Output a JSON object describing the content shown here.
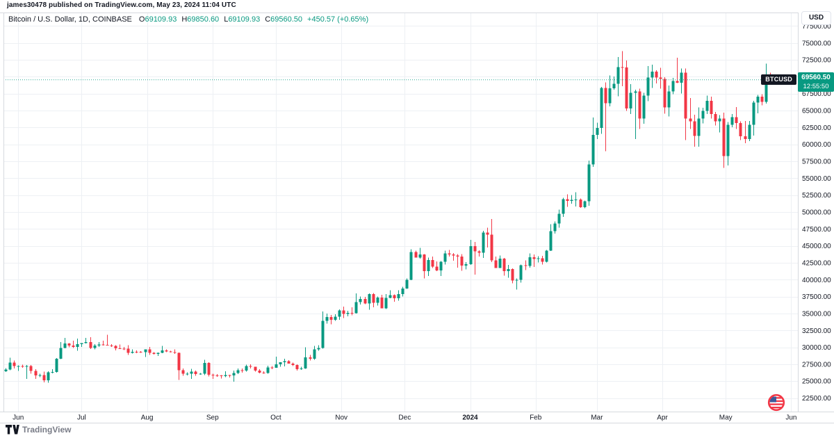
{
  "attribution": "james30478 published on TradingView.com, May 23, 2024 11:04 UTC",
  "legend": {
    "symbol_title": "Bitcoin / U.S. Dollar, 1D, COINBASE",
    "ohlc": [
      {
        "label": "O",
        "value": "69109.93"
      },
      {
        "label": "H",
        "value": "69850.60"
      },
      {
        "label": "L",
        "value": "69109.93"
      },
      {
        "label": "C",
        "value": "69560.50"
      }
    ],
    "change": "+450.57 (+0.65%)"
  },
  "price_scale": {
    "currency_button": "USD",
    "symbol_tag": "BTCUSD",
    "price_label": {
      "price": "69560.50",
      "countdown": "12:55:50"
    },
    "ticks": [
      "77500.00",
      "75000.00",
      "72500.00",
      "70000.00",
      "67500.00",
      "65000.00",
      "62500.00",
      "60000.00",
      "57500.00",
      "55000.00",
      "52500.00",
      "50000.00",
      "47500.00",
      "45000.00",
      "42500.00",
      "40000.00",
      "37500.00",
      "35000.00",
      "32500.00",
      "30000.00",
      "27500.00",
      "25000.00",
      "22500.00"
    ]
  },
  "time_scale": {
    "months": [
      {
        "label": "Jun",
        "index": 3
      },
      {
        "label": "Jul",
        "index": 18
      },
      {
        "label": "Aug",
        "index": 33.5
      },
      {
        "label": "Sep",
        "index": 49
      },
      {
        "label": "Oct",
        "index": 64
      },
      {
        "label": "Nov",
        "index": 79.5
      },
      {
        "label": "Dec",
        "index": 94.5
      },
      {
        "label": "2024",
        "index": 110,
        "year": true
      },
      {
        "label": "Feb",
        "index": 125.5
      },
      {
        "label": "Mar",
        "index": 140
      },
      {
        "label": "Apr",
        "index": 155.5
      },
      {
        "label": "May",
        "index": 170.5
      },
      {
        "label": "Jun",
        "index": 186
      }
    ]
  },
  "footer": {
    "brand": "TradingView"
  },
  "colors": {
    "up": "#089981",
    "down": "#F23645",
    "grid": "#EDF0F4",
    "border": "#D6D9DE",
    "text": "#131722",
    "muted": "#787B86",
    "price_line": "#089981",
    "tag_bg": "#089981",
    "symbol_tag_bg": "#131722"
  },
  "chart_data": {
    "type": "candlestick",
    "symbol": "BTCUSD",
    "exchange": "COINBASE",
    "interval": "1D",
    "x_start_date": "2023-05-26",
    "days_per_candle": 2,
    "ylim": [
      20500,
      79500
    ],
    "y_tick_step": 2500,
    "grid": true,
    "last_price": 69560.5,
    "candles_format": [
      "open",
      "high",
      "low",
      "close"
    ],
    "candles": [
      [
        26450,
        26900,
        26350,
        26720
      ],
      [
        26720,
        28450,
        26620,
        27740
      ],
      [
        27740,
        28050,
        26850,
        27220
      ],
      [
        27220,
        27320,
        26500,
        27250
      ],
      [
        27250,
        27450,
        26950,
        27120
      ],
      [
        27120,
        27400,
        25350,
        27240
      ],
      [
        27240,
        27400,
        26100,
        26500
      ],
      [
        26500,
        26780,
        25350,
        25850
      ],
      [
        25850,
        26100,
        25600,
        25900
      ],
      [
        25900,
        26430,
        24800,
        25130
      ],
      [
        25130,
        26480,
        24750,
        26330
      ],
      [
        26330,
        26770,
        26170,
        26340
      ],
      [
        26340,
        28400,
        26270,
        28320
      ],
      [
        28320,
        30800,
        28280,
        29890
      ],
      [
        29890,
        31390,
        29840,
        30550
      ],
      [
        30550,
        30650,
        29990,
        30270
      ],
      [
        30270,
        31000,
        29880,
        30080
      ],
      [
        30080,
        31280,
        29500,
        30470
      ],
      [
        30470,
        30640,
        30050,
        30620
      ],
      [
        30620,
        31380,
        30570,
        30780
      ],
      [
        30780,
        31500,
        29750,
        29900
      ],
      [
        29900,
        30450,
        29680,
        30290
      ],
      [
        30290,
        30800,
        30050,
        30400
      ],
      [
        30400,
        31000,
        30250,
        30380
      ],
      [
        30380,
        31850,
        30270,
        30290
      ],
      [
        30290,
        30450,
        30050,
        30230
      ],
      [
        30230,
        30340,
        29560,
        29860
      ],
      [
        29860,
        30420,
        29750,
        29800
      ],
      [
        29800,
        30050,
        29600,
        29790
      ],
      [
        29790,
        30340,
        28860,
        29180
      ],
      [
        29180,
        29680,
        29070,
        29350
      ],
      [
        29350,
        29550,
        29110,
        29320
      ],
      [
        29320,
        29450,
        29200,
        29280
      ],
      [
        29280,
        29720,
        28550,
        29700
      ],
      [
        29700,
        30050,
        28900,
        29170
      ],
      [
        29170,
        29300,
        28950,
        29050
      ],
      [
        29050,
        29250,
        28700,
        29200
      ],
      [
        29200,
        30220,
        29120,
        29560
      ],
      [
        29560,
        29700,
        29300,
        29400
      ],
      [
        29400,
        29470,
        29260,
        29280
      ],
      [
        29280,
        29680,
        29050,
        29170
      ],
      [
        29170,
        29250,
        25200,
        26600
      ],
      [
        26600,
        26850,
        25800,
        26100
      ],
      [
        26100,
        26300,
        25850,
        26120
      ],
      [
        26120,
        26800,
        25350,
        26430
      ],
      [
        26430,
        26550,
        25800,
        26050
      ],
      [
        26050,
        26200,
        25960,
        26100
      ],
      [
        26100,
        28140,
        25880,
        27720
      ],
      [
        27720,
        27800,
        25700,
        25940
      ],
      [
        25940,
        26120,
        25350,
        25870
      ],
      [
        25870,
        26030,
        25650,
        25820
      ],
      [
        25820,
        25900,
        25400,
        25750
      ],
      [
        25750,
        26450,
        25600,
        25900
      ],
      [
        25900,
        25960,
        25550,
        25830
      ],
      [
        25830,
        26550,
        24930,
        26200
      ],
      [
        26200,
        26850,
        26050,
        26600
      ],
      [
        26600,
        26850,
        26250,
        26570
      ],
      [
        26570,
        27430,
        26400,
        27210
      ],
      [
        27210,
        27490,
        26850,
        27130
      ],
      [
        27130,
        27150,
        26400,
        26580
      ],
      [
        26580,
        26750,
        26170,
        26250
      ],
      [
        26250,
        26450,
        26100,
        26220
      ],
      [
        26220,
        27300,
        26100,
        27020
      ],
      [
        27020,
        27230,
        26750,
        26960
      ],
      [
        26960,
        28600,
        26950,
        27500
      ],
      [
        27500,
        27800,
        27150,
        27790
      ],
      [
        27790,
        28300,
        27200,
        27960
      ],
      [
        27960,
        28100,
        27700,
        27590
      ],
      [
        27590,
        27730,
        27250,
        27390
      ],
      [
        27390,
        27480,
        26550,
        26750
      ],
      [
        26750,
        27120,
        26650,
        26860
      ],
      [
        26860,
        30000,
        26800,
        28520
      ],
      [
        28520,
        28900,
        28050,
        28330
      ],
      [
        28330,
        30200,
        28150,
        29680
      ],
      [
        29680,
        30300,
        29500,
        29910
      ],
      [
        29910,
        35280,
        29800,
        33900
      ],
      [
        33900,
        35000,
        33500,
        34500
      ],
      [
        34500,
        34800,
        33400,
        34090
      ],
      [
        34090,
        34900,
        33900,
        34530
      ],
      [
        34530,
        35600,
        34050,
        35430
      ],
      [
        35430,
        36000,
        34350,
        34940
      ],
      [
        34940,
        35380,
        34600,
        35080
      ],
      [
        35080,
        35900,
        34750,
        35050
      ],
      [
        35050,
        37980,
        35000,
        36700
      ],
      [
        36700,
        37500,
        36350,
        37130
      ],
      [
        37130,
        37450,
        36400,
        36460
      ],
      [
        36460,
        37980,
        35550,
        37880
      ],
      [
        37880,
        38000,
        35900,
        36590
      ],
      [
        36590,
        37500,
        36200,
        37360
      ],
      [
        37360,
        37750,
        35750,
        35750
      ],
      [
        35750,
        37850,
        35650,
        37290
      ],
      [
        37290,
        38450,
        37250,
        37710
      ],
      [
        37710,
        37820,
        36750,
        37240
      ],
      [
        37240,
        38420,
        36900,
        37860
      ],
      [
        37860,
        38950,
        37500,
        38680
      ],
      [
        38680,
        40200,
        38650,
        39970
      ],
      [
        39970,
        44480,
        39950,
        44080
      ],
      [
        44080,
        44300,
        43400,
        43290
      ],
      [
        43290,
        44700,
        43100,
        43720
      ],
      [
        43720,
        43800,
        40200,
        41240
      ],
      [
        41240,
        43280,
        40550,
        42900
      ],
      [
        42900,
        43420,
        41700,
        41940
      ],
      [
        41940,
        42700,
        41250,
        41370
      ],
      [
        41370,
        42730,
        40530,
        42660
      ],
      [
        42660,
        44280,
        42250,
        43870
      ],
      [
        43870,
        44400,
        43440,
        43720
      ],
      [
        43720,
        43950,
        42800,
        43580
      ],
      [
        43580,
        43800,
        41800,
        43440
      ],
      [
        43440,
        43800,
        41300,
        42070
      ],
      [
        42070,
        42600,
        41520,
        42280
      ],
      [
        42280,
        45900,
        42200,
        44950
      ],
      [
        44950,
        45600,
        40750,
        44170
      ],
      [
        44170,
        44350,
        43400,
        43970
      ],
      [
        43970,
        47250,
        43200,
        46950
      ],
      [
        46950,
        47700,
        44750,
        46650
      ],
      [
        46650,
        48970,
        42600,
        42840
      ],
      [
        42840,
        43440,
        41720,
        41740
      ],
      [
        41740,
        43580,
        41700,
        43110
      ],
      [
        43110,
        43200,
        40600,
        41260
      ],
      [
        41260,
        42200,
        40280,
        41580
      ],
      [
        41580,
        41690,
        39450,
        39880
      ],
      [
        39880,
        40180,
        38520,
        39960
      ],
      [
        39960,
        42250,
        39550,
        42120
      ],
      [
        42120,
        42850,
        41400,
        42030
      ],
      [
        42030,
        43880,
        41800,
        43300
      ],
      [
        43300,
        43750,
        41880,
        43080
      ],
      [
        43080,
        43450,
        42550,
        43190
      ],
      [
        43190,
        43550,
        42250,
        42660
      ],
      [
        42660,
        44400,
        42570,
        44290
      ],
      [
        44290,
        48200,
        44230,
        47150
      ],
      [
        47150,
        48600,
        46800,
        48290
      ],
      [
        48290,
        50380,
        47700,
        49740
      ],
      [
        49740,
        52100,
        49280,
        51900
      ],
      [
        51900,
        52600,
        50750,
        51660
      ],
      [
        51660,
        52500,
        51250,
        51780
      ],
      [
        51780,
        52950,
        50800,
        51850
      ],
      [
        51850,
        52000,
        50620,
        50740
      ],
      [
        50740,
        51700,
        50580,
        51570
      ],
      [
        51570,
        57600,
        50930,
        57040
      ],
      [
        57040,
        64000,
        56700,
        61400
      ],
      [
        61400,
        63230,
        60780,
        62440
      ],
      [
        62440,
        68500,
        61550,
        68330
      ],
      [
        68330,
        69170,
        59000,
        66090
      ],
      [
        66090,
        70180,
        65600,
        68300
      ],
      [
        68300,
        70050,
        68100,
        68960
      ],
      [
        68960,
        72900,
        67100,
        71450
      ],
      [
        71450,
        73780,
        68630,
        71390
      ],
      [
        71390,
        72400,
        64960,
        65310
      ],
      [
        65310,
        68900,
        64500,
        67610
      ],
      [
        67610,
        68100,
        60770,
        67840
      ],
      [
        67840,
        68240,
        62260,
        63800
      ],
      [
        63800,
        67620,
        63050,
        67210
      ],
      [
        67210,
        71560,
        66400,
        69880
      ],
      [
        69880,
        71770,
        68360,
        70780
      ],
      [
        70780,
        70950,
        69020,
        69890
      ],
      [
        69890,
        71330,
        68220,
        69700
      ],
      [
        69700,
        69960,
        64550,
        65450
      ],
      [
        65450,
        68700,
        64110,
        67840
      ],
      [
        67840,
        69850,
        67430,
        69360
      ],
      [
        69360,
        72800,
        69050,
        69140
      ],
      [
        69140,
        71250,
        67500,
        70630
      ],
      [
        70630,
        71230,
        60660,
        63840
      ],
      [
        63840,
        66870,
        62280,
        63420
      ],
      [
        63420,
        64380,
        59640,
        61280
      ],
      [
        61280,
        65480,
        59680,
        63840
      ],
      [
        63840,
        65400,
        63100,
        64940
      ],
      [
        64940,
        67230,
        64500,
        66430
      ],
      [
        66430,
        67060,
        63850,
        64500
      ],
      [
        64500,
        64800,
        62780,
        63420
      ],
      [
        63420,
        64350,
        61770,
        63840
      ],
      [
        63840,
        64700,
        56550,
        58300
      ],
      [
        58300,
        63330,
        56880,
        62890
      ],
      [
        62890,
        64480,
        62550,
        64010
      ],
      [
        64010,
        65500,
        62300,
        63160
      ],
      [
        63160,
        63420,
        60630,
        61190
      ],
      [
        61190,
        63450,
        60200,
        60790
      ],
      [
        60790,
        63460,
        60500,
        62900
      ],
      [
        62900,
        66440,
        61330,
        66210
      ],
      [
        66210,
        67300,
        64600,
        67050
      ],
      [
        67050,
        67400,
        65800,
        66270
      ],
      [
        66270,
        71950,
        66060,
        70150
      ],
      [
        70150,
        70600,
        68840,
        69560.5
      ]
    ]
  }
}
